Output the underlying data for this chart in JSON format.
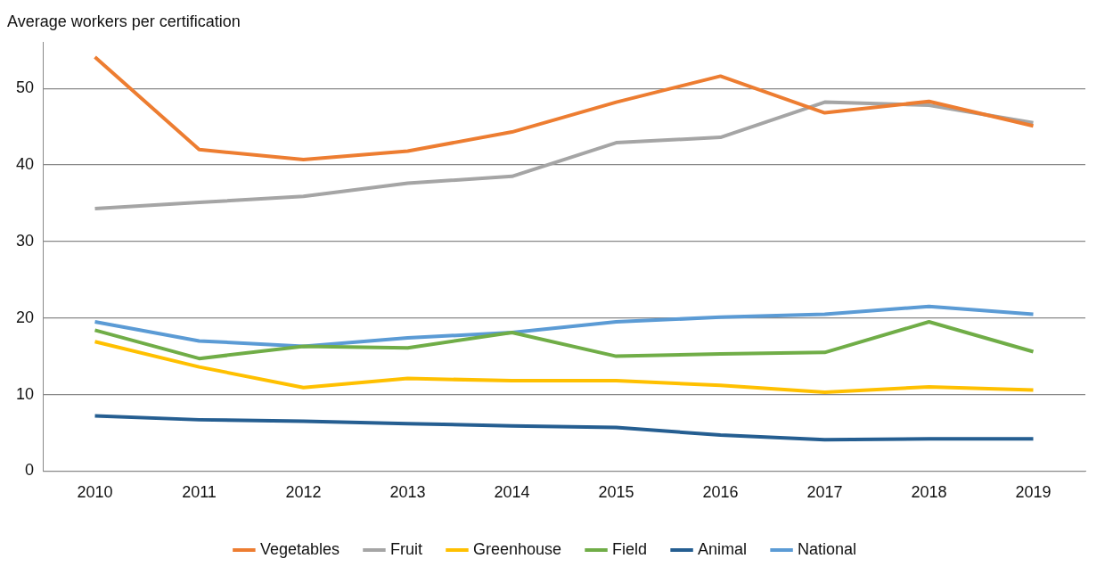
{
  "chart_data": {
    "type": "line",
    "ylabel": "Average workers per certification",
    "categories": [
      "2010",
      "2011",
      "2012",
      "2013",
      "2014",
      "2015",
      "2016",
      "2017",
      "2018",
      "2019"
    ],
    "ylim": [
      0,
      56
    ],
    "yticks": [
      0,
      10,
      20,
      30,
      40,
      50
    ],
    "grid": "y",
    "legend": "bottom",
    "marker": "none",
    "line_style": "solid",
    "series": [
      {
        "name": "Vegetables",
        "color": "#ed7d31",
        "values": [
          54.1,
          42.0,
          40.7,
          41.8,
          44.3,
          48.2,
          51.6,
          46.8,
          48.3,
          45.1
        ]
      },
      {
        "name": "Fruit",
        "color": "#a5a5a5",
        "values": [
          34.3,
          35.1,
          35.9,
          37.6,
          38.5,
          42.9,
          43.6,
          48.2,
          47.8,
          45.5
        ]
      },
      {
        "name": "Greenhouse",
        "color": "#ffc000",
        "values": [
          16.9,
          13.6,
          10.9,
          12.1,
          11.8,
          11.8,
          11.2,
          10.3,
          11.0,
          10.6
        ]
      },
      {
        "name": "Field",
        "color": "#70ad47",
        "values": [
          18.4,
          14.7,
          16.3,
          16.1,
          18.1,
          15.0,
          15.3,
          15.5,
          19.5,
          15.6
        ]
      },
      {
        "name": "Animal",
        "color": "#255e91",
        "values": [
          7.2,
          6.7,
          6.5,
          6.2,
          5.9,
          5.7,
          4.7,
          4.1,
          4.2,
          4.2
        ]
      },
      {
        "name": "National",
        "color": "#5b9bd5",
        "values": [
          19.5,
          17.0,
          16.3,
          17.4,
          18.1,
          19.5,
          20.1,
          20.5,
          21.5,
          20.5
        ]
      }
    ]
  }
}
